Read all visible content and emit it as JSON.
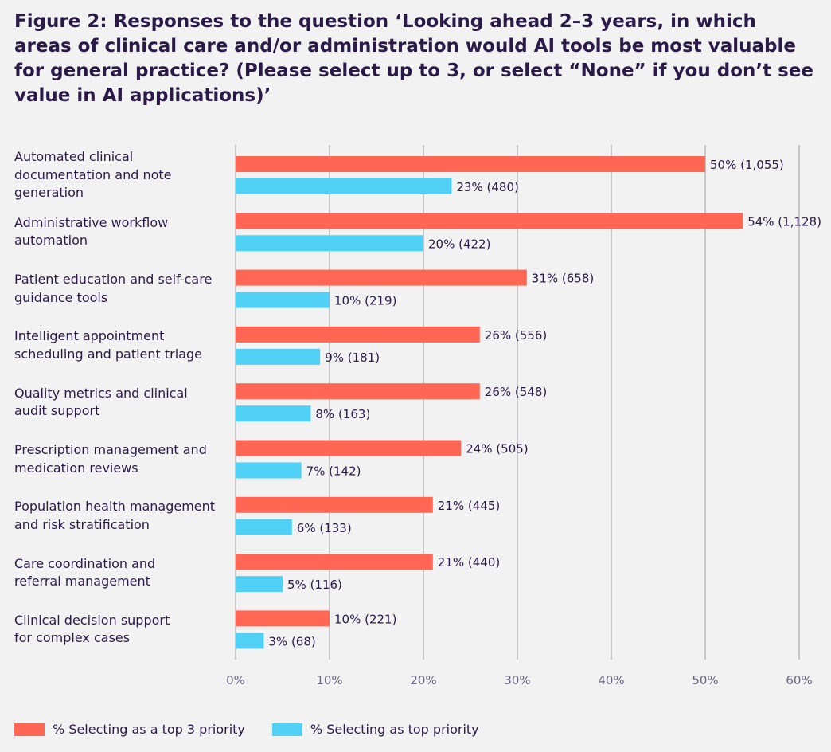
{
  "title": "Figure 2: Responses to the question ‘Looking ahead 2–3 years, in which areas of clinical care and/or administration would AI tools be most valuable for general practice? (Please select up to 3, or select “None” if you don’t see value in AI applications)’",
  "colors": {
    "top3": "#ff6654",
    "top": "#4fd0f4",
    "grid": "#a9a9a9",
    "text": "#2a1a47"
  },
  "chart_data": {
    "type": "bar",
    "orientation": "horizontal",
    "title": "Figure 2: Responses to the question ‘Looking ahead 2–3 years, in which areas of clinical care and/or administration would AI tools be most valuable for general practice? (Please select up to 3, or select “None” if you don’t see value in AI applications)’",
    "xlabel": "",
    "ylabel": "",
    "xlim": [
      0,
      60
    ],
    "ticks": [
      0,
      10,
      20,
      30,
      40,
      50,
      60
    ],
    "tick_labels": [
      "0%",
      "10%",
      "20%",
      "30%",
      "40%",
      "50%",
      "60%"
    ],
    "grid": true,
    "legend_position": "bottom-left",
    "categories": [
      [
        "Automated clinical",
        "documentation and note",
        "generation"
      ],
      [
        "Administrative workflow",
        "automation"
      ],
      [
        "Patient education and self-care",
        "guidance tools"
      ],
      [
        "Intelligent appointment",
        "scheduling and patient triage"
      ],
      [
        "Quality metrics and clinical",
        "audit support"
      ],
      [
        "Prescription management and",
        "medication reviews"
      ],
      [
        "Population health management",
        "and risk stratification"
      ],
      [
        "Care coordination and",
        "referral management"
      ],
      [
        "Clinical decision support",
        "for complex cases"
      ]
    ],
    "series": [
      {
        "name": "% Selecting as a top 3 priority",
        "color": "#ff6654",
        "values": [
          50,
          54,
          31,
          26,
          26,
          24,
          21,
          21,
          10
        ],
        "labels": [
          "50% (1,055)",
          "54% (1,128)",
          "31% (658)",
          "26% (556)",
          "26% (548)",
          "24% (505)",
          "21% (445)",
          "21% (440)",
          "10% (221)"
        ]
      },
      {
        "name": "% Selecting as top priority",
        "color": "#4fd0f4",
        "values": [
          23,
          20,
          10,
          9,
          8,
          7,
          6,
          5,
          3
        ],
        "labels": [
          "23% (480)",
          "20% (422)",
          "10% (219)",
          "9% (181)",
          "8% (163)",
          "7% (142)",
          "6% (133)",
          "5% (116)",
          "3% (68)"
        ]
      }
    ]
  }
}
